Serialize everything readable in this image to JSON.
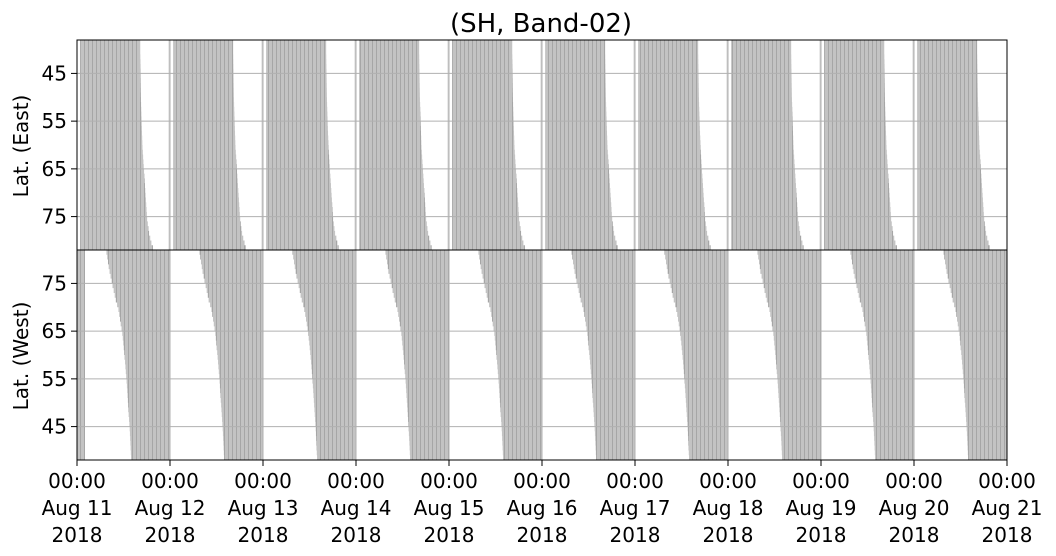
{
  "chart_data": {
    "type": "area",
    "title": "(SH, Band-02)",
    "panels": [
      {
        "name": "east",
        "ylabel": "Lat. (East)",
        "ylim": [
          38,
          82
        ],
        "y_inverted": true,
        "yticks": [
          45,
          55,
          65,
          75
        ],
        "note": "filled band starts each day near 00:45 and ends ~16:30 at 45°, ~19:00 at 80°"
      },
      {
        "name": "west",
        "ylabel": "Lat. (West)",
        "ylim": [
          38,
          82
        ],
        "y_inverted": false,
        "yticks": [
          45,
          55,
          65,
          75
        ],
        "note": "filled band starts ~08:00 at 80° and ~14:00 at 40°, ends ~24:00"
      }
    ],
    "x_start": "Aug 11 2018 00:00",
    "x_end": "Aug 21 2018 00:00",
    "xticks": [
      {
        "time": "00:00",
        "date": "Aug 11",
        "year": "2018"
      },
      {
        "time": "00:00",
        "date": "Aug 12",
        "year": "2018"
      },
      {
        "time": "00:00",
        "date": "Aug 13",
        "year": "2018"
      },
      {
        "time": "00:00",
        "date": "Aug 14",
        "year": "2018"
      },
      {
        "time": "00:00",
        "date": "Aug 15",
        "year": "2018"
      },
      {
        "time": "00:00",
        "date": "Aug 16",
        "year": "2018"
      },
      {
        "time": "00:00",
        "date": "Aug 17",
        "year": "2018"
      },
      {
        "time": "00:00",
        "date": "Aug 18",
        "year": "2018"
      },
      {
        "time": "00:00",
        "date": "Aug 19",
        "year": "2018"
      },
      {
        "time": "00:00",
        "date": "Aug 20",
        "year": "2018"
      },
      {
        "time": "00:00",
        "date": "Aug 21",
        "year": "2018"
      }
    ],
    "days": 10,
    "east_band_start_hour": 0.8,
    "east_band_end_hours": {
      "lat": [
        40,
        50,
        60,
        65,
        70,
        75,
        78,
        80,
        82
      ],
      "hour": [
        16.3,
        16.5,
        16.9,
        17.3,
        17.7,
        18.1,
        18.6,
        19.2,
        20.0
      ]
    },
    "west_band_start_hours": {
      "lat": [
        82,
        80,
        78,
        75,
        72,
        70,
        65,
        60,
        55,
        50,
        45,
        40,
        38
      ],
      "hour": [
        7.6,
        8.0,
        8.4,
        9.2,
        10.0,
        10.7,
        11.7,
        12.3,
        12.8,
        13.2,
        13.6,
        13.9,
        14.0
      ]
    },
    "west_band_end_hour": 24.0,
    "grid": true,
    "fill_color": "#c0c0c0",
    "stripe_color": "#a4a4a4"
  }
}
